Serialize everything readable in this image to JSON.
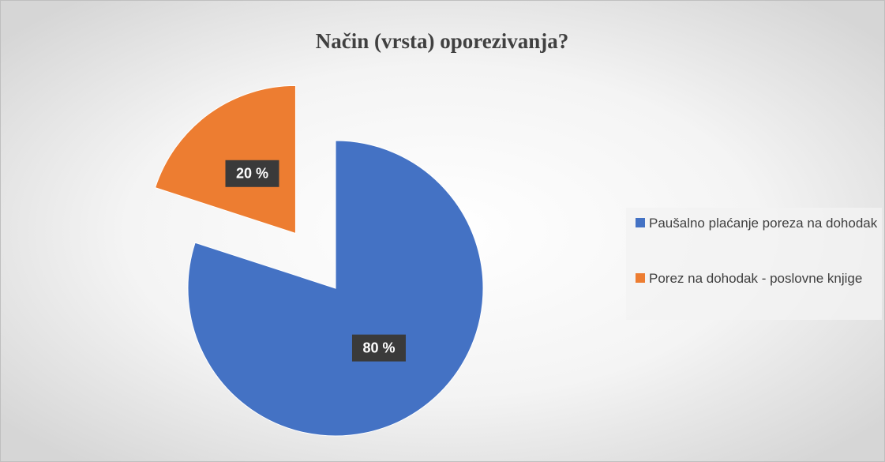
{
  "chart_data": {
    "type": "pie",
    "title": "Način (vrsta) oporezivanja?",
    "categories": [
      "Paušalno plaćanje poreza na dohodak",
      "Porez na dohodak - poslovne knjige"
    ],
    "values": [
      80,
      20
    ],
    "value_labels": [
      "80 %",
      "20 %"
    ],
    "colors": [
      "#4472c4",
      "#ed7d31"
    ],
    "exploded": [
      false,
      true
    ],
    "legend": "right"
  }
}
